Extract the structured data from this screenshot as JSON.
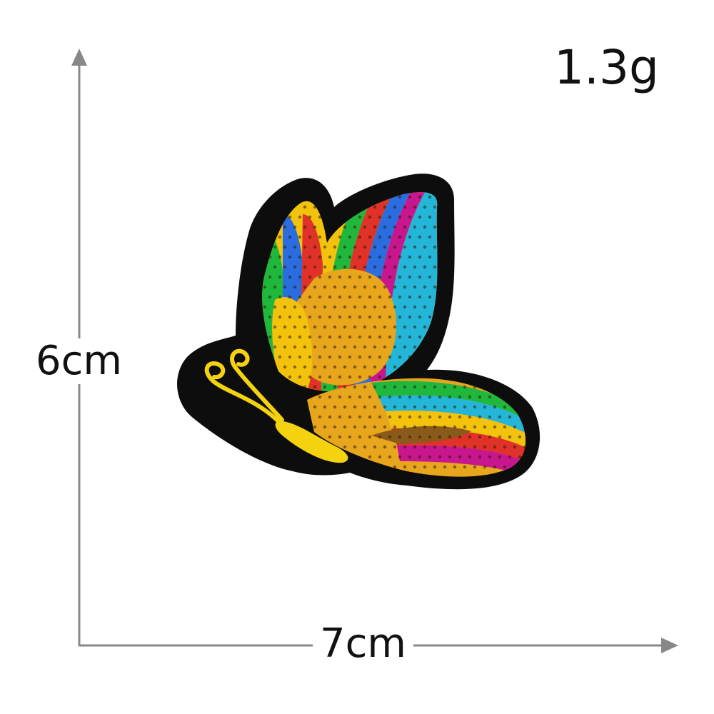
{
  "weight_label": "1.3g",
  "height_label": "6cm",
  "width_label": "7cm",
  "colors": {
    "background": "#ffffff",
    "dimension_line": "#888888",
    "text": "#111111",
    "felt_backing": "#0d0d0d",
    "sequin_gold": "#e8a61c",
    "sequin_rainbow": [
      "#1fb83c",
      "#2a6de0",
      "#c8168f",
      "#e03228",
      "#23b6d8",
      "#f2c20c"
    ],
    "embroidery_yellow": "#f5d20f"
  },
  "icons": {
    "vertical_arrow": "arrow-up-icon",
    "horizontal_arrow": "arrow-right-icon",
    "product": "sequin-butterfly-patch"
  }
}
